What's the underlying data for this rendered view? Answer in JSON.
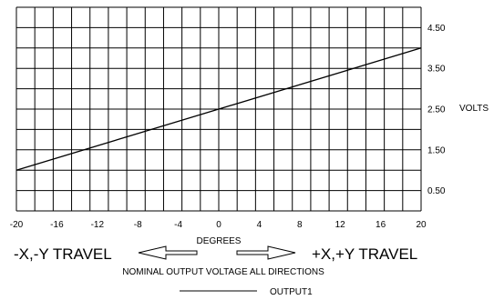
{
  "chart_data": {
    "type": "line",
    "title": "",
    "xlabel": "DEGREES",
    "ylabel": "VOLTS",
    "xlim": [
      -20,
      20
    ],
    "ylim": [
      0,
      5
    ],
    "x_ticks": [
      "-20",
      "-16",
      "-12",
      "-8",
      "-4",
      "0",
      "4",
      "8",
      "12",
      "16",
      "20"
    ],
    "y_ticks": [
      "4.50",
      "3.50",
      "2.50",
      "1.50",
      "0.50"
    ],
    "y_tick_values": [
      4.5,
      3.5,
      2.5,
      1.5,
      0.5
    ],
    "grid": true,
    "series": [
      {
        "name": "OUTPUT1",
        "x": [
          -20,
          20
        ],
        "y": [
          1.0,
          4.0
        ]
      }
    ],
    "annotations": {
      "left_travel": "-X,-Y TRAVEL",
      "right_travel": "+X,+Y TRAVEL",
      "caption": "NOMINAL OUTPUT VOLTAGE ALL DIRECTIONS"
    },
    "legend_position": "bottom-center"
  }
}
